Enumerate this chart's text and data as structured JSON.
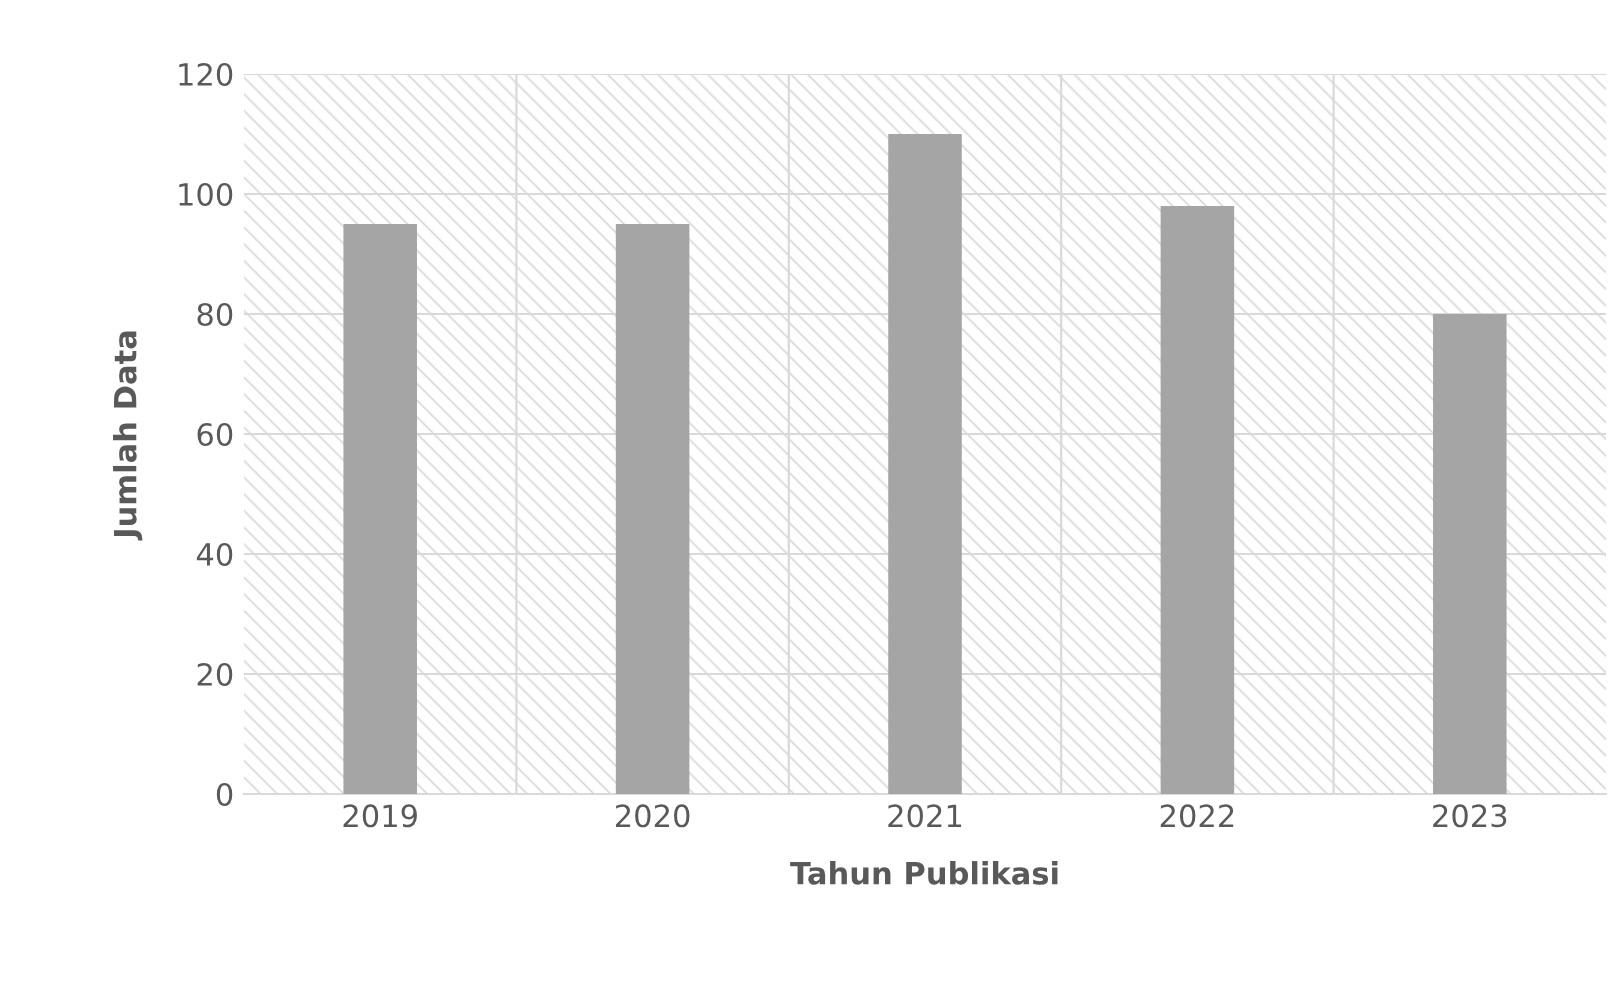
{
  "chart_data": {
    "type": "bar",
    "xlabel": "Tahun Publikasi",
    "ylabel": "Jumlah Data",
    "categories": [
      "2019",
      "2020",
      "2021",
      "2022",
      "2023"
    ],
    "values": [
      95,
      95,
      110,
      98,
      80
    ],
    "color": "#a5a5a5",
    "ylim": [
      0,
      120
    ],
    "yticks": [
      0,
      20,
      40,
      60,
      80,
      100,
      120
    ],
    "grid": true
  }
}
